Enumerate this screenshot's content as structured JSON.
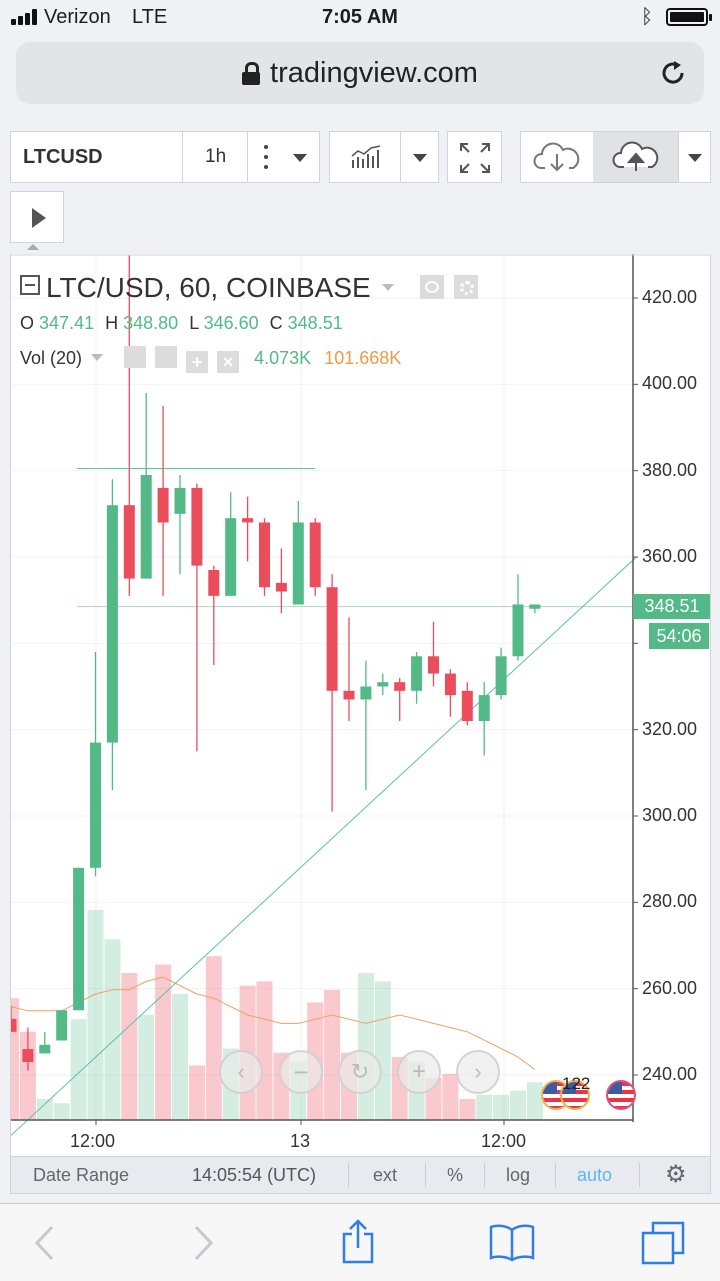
{
  "status": {
    "carrier": "Verizon",
    "network": "LTE",
    "time": "7:05 AM"
  },
  "browser": {
    "url": "tradingview.com"
  },
  "toolbar": {
    "symbol": "LTCUSD",
    "interval": "1h"
  },
  "legend": {
    "title": "LTC/USD, 60, COINBASE",
    "o_label": "O",
    "o_value": "347.41",
    "h_label": "H",
    "h_value": "348.80",
    "l_label": "L",
    "l_value": "346.60",
    "c_label": "C",
    "c_value": "348.51",
    "vol_label": "Vol (20)",
    "vol_value1": "4.073K",
    "vol_value2": "101.668K"
  },
  "price_axis": {
    "ticks": [
      "420.00",
      "400.00",
      "380.00",
      "360.00",
      "320.00",
      "300.00",
      "280.00",
      "260.00",
      "240.00"
    ],
    "last_price": "348.51",
    "countdown": "54:06"
  },
  "time_axis": {
    "labels": [
      "12:00",
      "13",
      "12:00"
    ]
  },
  "events_badge": "122",
  "bottom_bar": {
    "date_range": "Date Range",
    "clock": "14:05:54 (UTC)",
    "ext": "ext",
    "percent": "%",
    "log": "log",
    "auto": "auto"
  },
  "colors": {
    "up": "#53b987",
    "down": "#eb4d5c",
    "accent": "#5cb8ef"
  },
  "chart_data": {
    "type": "candlestick",
    "title": "LTC/USD, 60, COINBASE",
    "xlabel": "",
    "ylabel": "",
    "ylim": [
      228,
      432
    ],
    "candles": [
      {
        "o": 253,
        "h": 256,
        "l": 250,
        "c": 250
      },
      {
        "o": 246,
        "h": 251,
        "l": 241,
        "c": 243
      },
      {
        "o": 245,
        "h": 250,
        "l": 245,
        "c": 247
      },
      {
        "o": 248,
        "h": 255,
        "l": 248,
        "c": 255
      },
      {
        "o": 255,
        "h": 288,
        "l": 255,
        "c": 288
      },
      {
        "o": 288,
        "h": 338,
        "l": 286,
        "c": 317
      },
      {
        "o": 317,
        "h": 378,
        "l": 306,
        "c": 372
      },
      {
        "o": 372,
        "h": 430,
        "l": 351,
        "c": 355
      },
      {
        "o": 355,
        "h": 398,
        "l": 355,
        "c": 379
      },
      {
        "o": 376,
        "h": 395,
        "l": 351,
        "c": 368
      },
      {
        "o": 370,
        "h": 379,
        "l": 356,
        "c": 376
      },
      {
        "o": 376,
        "h": 377,
        "l": 315,
        "c": 358
      },
      {
        "o": 357,
        "h": 358,
        "l": 335,
        "c": 351
      },
      {
        "o": 351,
        "h": 375,
        "l": 351,
        "c": 369
      },
      {
        "o": 369,
        "h": 374,
        "l": 359,
        "c": 368
      },
      {
        "o": 368,
        "h": 369,
        "l": 351,
        "c": 353
      },
      {
        "o": 354,
        "h": 362,
        "l": 347,
        "c": 352
      },
      {
        "o": 349,
        "h": 373,
        "l": 349,
        "c": 368
      },
      {
        "o": 368,
        "h": 369,
        "l": 351,
        "c": 353
      },
      {
        "o": 353,
        "h": 356,
        "l": 301,
        "c": 329
      },
      {
        "o": 329,
        "h": 346,
        "l": 322,
        "c": 327
      },
      {
        "o": 327,
        "h": 336,
        "l": 306,
        "c": 330
      },
      {
        "o": 330,
        "h": 333,
        "l": 328,
        "c": 331
      },
      {
        "o": 331,
        "h": 332,
        "l": 322,
        "c": 329
      },
      {
        "o": 329,
        "h": 338,
        "l": 326,
        "c": 337
      },
      {
        "o": 337,
        "h": 345,
        "l": 330,
        "c": 333
      },
      {
        "o": 333,
        "h": 334,
        "l": 323,
        "c": 328
      },
      {
        "o": 329,
        "h": 331,
        "l": 321,
        "c": 322
      },
      {
        "o": 322,
        "h": 331,
        "l": 314,
        "c": 328
      },
      {
        "o": 328,
        "h": 339,
        "l": 327,
        "c": 337
      },
      {
        "o": 337,
        "h": 356,
        "l": 336,
        "c": 349
      },
      {
        "o": 348,
        "h": 349,
        "l": 347,
        "c": 349
      }
    ],
    "volume": [
      29,
      21,
      5,
      4,
      24,
      50,
      43,
      35,
      25,
      37,
      30,
      13,
      39,
      17,
      32,
      33,
      16,
      14,
      28,
      31,
      16,
      35,
      33,
      15,
      14,
      10,
      11,
      5,
      6,
      6,
      7,
      9
    ],
    "volume_ma": [
      27,
      26,
      26,
      26,
      28,
      30,
      31,
      31,
      33,
      34,
      32,
      30,
      29,
      27,
      25,
      24,
      23,
      23,
      24,
      25,
      24,
      23,
      24,
      25,
      24,
      23,
      22,
      21,
      19,
      17,
      15,
      12
    ],
    "trendline": [
      [
        0,
        226
      ],
      [
        37,
        360
      ]
    ],
    "hline_top": 380.5,
    "hline_price": 348.51
  }
}
